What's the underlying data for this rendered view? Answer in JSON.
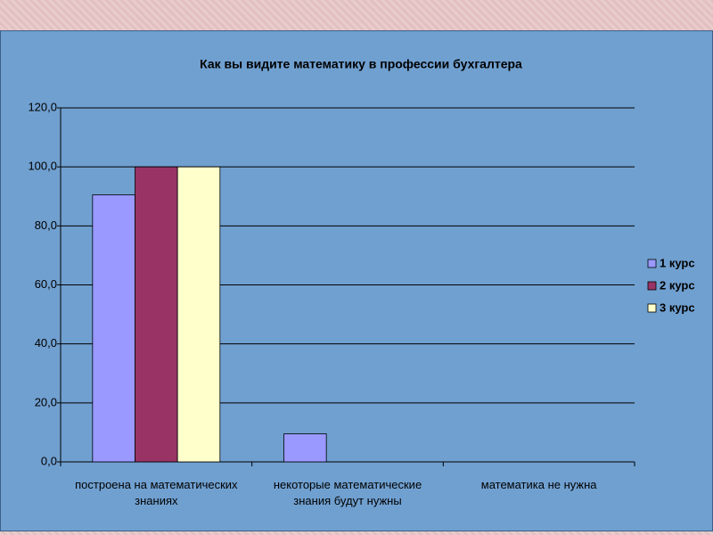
{
  "chart_data": {
    "type": "bar",
    "title": "Как вы видите математику в профессии бухгалтера",
    "categories": [
      "построена на математических знаниях",
      "некоторые математические знания будут нужны",
      "математика не нужна"
    ],
    "series": [
      {
        "name": "1 курс",
        "color": "#9999ff",
        "values": [
          90.5,
          9.5,
          0
        ]
      },
      {
        "name": "2 курс",
        "color": "#993366",
        "values": [
          100,
          0,
          0
        ]
      },
      {
        "name": "3 курс",
        "color": "#ffffcc",
        "values": [
          100,
          0,
          0
        ]
      }
    ],
    "ylim": [
      0,
      120
    ],
    "yticks": [
      {
        "value": 0,
        "label": "0,0"
      },
      {
        "value": 20,
        "label": "20,0"
      },
      {
        "value": 40,
        "label": "40,0"
      },
      {
        "value": 60,
        "label": "60,0"
      },
      {
        "value": 80,
        "label": "80,0"
      },
      {
        "value": 100,
        "label": "100,0"
      },
      {
        "value": 120,
        "label": "120,0"
      }
    ],
    "grid": true,
    "legend": "right"
  }
}
